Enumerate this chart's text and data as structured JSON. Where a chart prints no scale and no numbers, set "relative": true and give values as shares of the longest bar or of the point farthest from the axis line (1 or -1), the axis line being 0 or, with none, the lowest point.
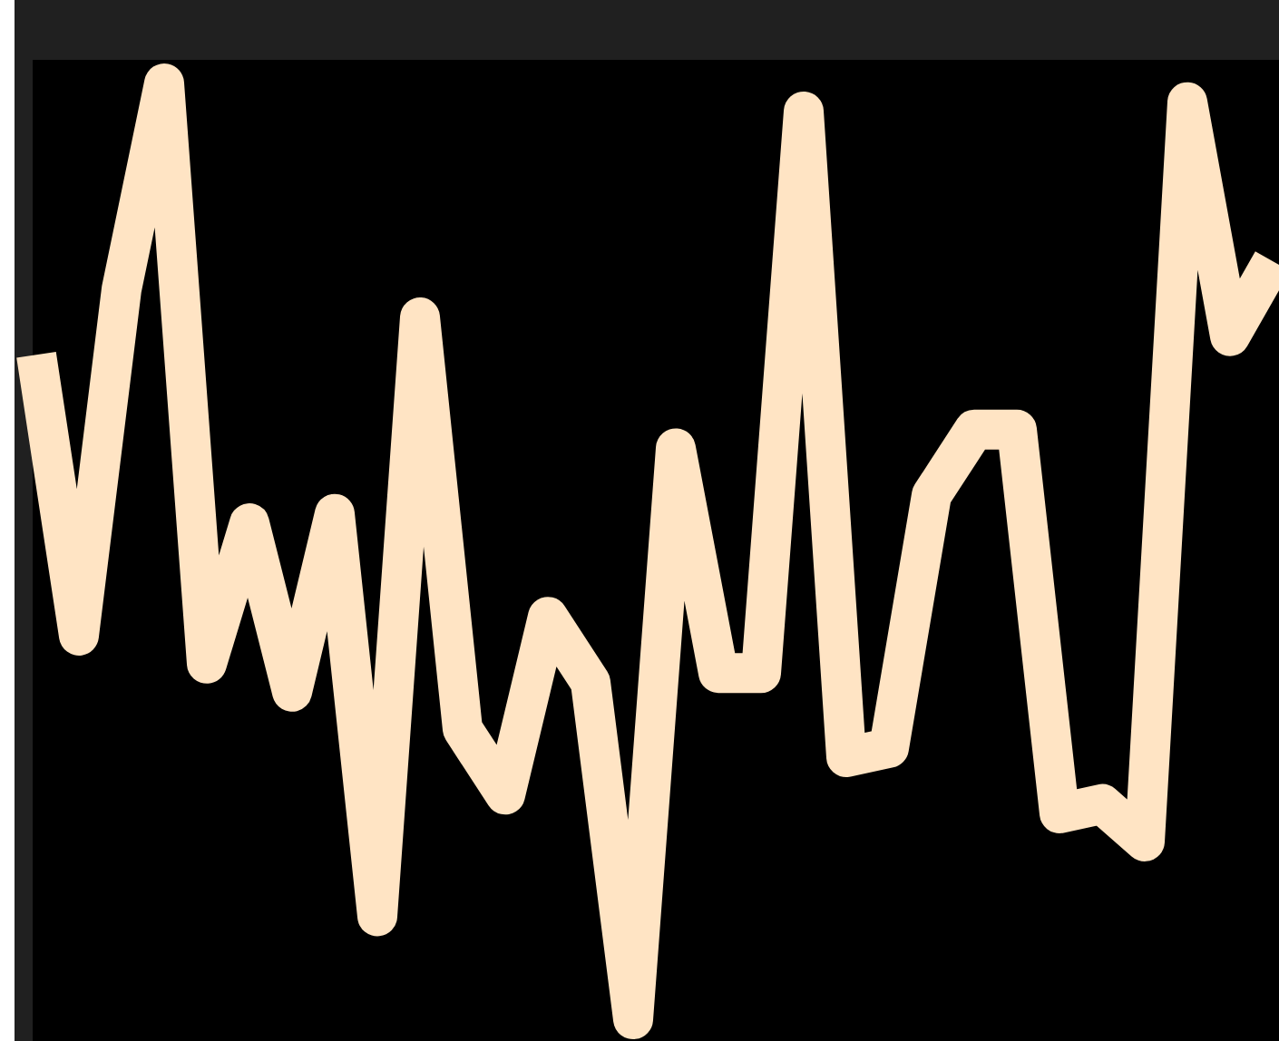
{
  "chart_data": {
    "type": "line",
    "relative": true,
    "categories": [
      null,
      null,
      null,
      null,
      null,
      null,
      null,
      null,
      null,
      null,
      null,
      null,
      null,
      null,
      null,
      null,
      null,
      null,
      null,
      null,
      null,
      null,
      null,
      null,
      null,
      null,
      null,
      null,
      null,
      null
    ],
    "series": [
      {
        "color": "#ffe4c4",
        "values": [
          0.71,
          0.41,
          0.78,
          1,
          0.38,
          0.53,
          0.35,
          0.54,
          0.11,
          0.75,
          0.31,
          0.24,
          0.43,
          0.36,
          0,
          0.61,
          0.37,
          0.37,
          0.97,
          0.28,
          0.29,
          0.56,
          0.63,
          0.63,
          0.22,
          0.23,
          0.19,
          0.98,
          0.73,
          0.81
        ]
      }
    ],
    "marker": "none",
    "line_style": "solid",
    "grid": false
  }
}
